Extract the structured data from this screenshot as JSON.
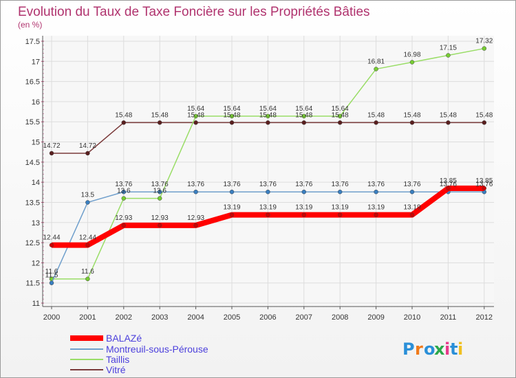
{
  "chart_data": {
    "type": "line",
    "title": "Evolution du Taux de Taxe Foncière sur les Propriétés Bâties",
    "ylabel": "(en %)",
    "xlabel": "",
    "categories": [
      "2000",
      "2001",
      "2002",
      "2003",
      "2004",
      "2005",
      "2006",
      "2007",
      "2008",
      "2009",
      "2010",
      "2011",
      "2012"
    ],
    "ylim": [
      11,
      17.5
    ],
    "yticks": [
      "11",
      "11.5",
      "12",
      "12.5",
      "13",
      "13.5",
      "14",
      "14.5",
      "15",
      "15.5",
      "16",
      "16.5",
      "17",
      "17.5"
    ],
    "series": [
      {
        "name": "BALAZé",
        "color": "#ff0000",
        "marker": "#cc0000",
        "values": [
          12.44,
          12.44,
          12.93,
          12.93,
          12.93,
          13.19,
          13.19,
          13.19,
          13.19,
          13.19,
          13.19,
          13.85,
          13.85
        ],
        "labels": [
          "12.44",
          "12.44",
          "12.93",
          "12.93",
          "12.93",
          "13.19",
          "13.19",
          "13.19",
          "13.19",
          "13.19",
          "13.19",
          "13.85",
          "13.85"
        ]
      },
      {
        "name": "Montreuil-sous-Pérouse",
        "color": "#6f9fcc",
        "marker": "#3a7fc0",
        "values": [
          11.5,
          13.5,
          13.76,
          13.76,
          13.76,
          13.76,
          13.76,
          13.76,
          13.76,
          13.76,
          13.76,
          13.76,
          13.76
        ],
        "labels": [
          "11.5",
          "13.5",
          "13.76",
          "13.76",
          "13.76",
          "13.76",
          "13.76",
          "13.76",
          "13.76",
          "13.76",
          "13.76",
          "13.76",
          "13.76"
        ]
      },
      {
        "name": "Taillis",
        "color": "#99dd66",
        "marker": "#77cc33",
        "values": [
          11.6,
          11.6,
          13.6,
          13.6,
          15.64,
          15.64,
          15.64,
          15.64,
          15.64,
          16.81,
          16.98,
          17.15,
          17.32
        ],
        "labels": [
          "11.6",
          "11.6",
          "13.6",
          "13.6",
          "15.64",
          "15.64",
          "15.64",
          "15.64",
          "15.64",
          "16.81",
          "16.98",
          "17.15",
          "17.32"
        ]
      },
      {
        "name": "Vitré",
        "color": "#7a3a3a",
        "marker": "#5a1f1f",
        "values": [
          14.72,
          14.72,
          15.48,
          15.48,
          15.48,
          15.48,
          15.48,
          15.48,
          15.48,
          15.48,
          15.48,
          15.48,
          15.48
        ],
        "labels": [
          "14.72",
          "14.72",
          "15.48",
          "15.48",
          "15.48",
          "15.48",
          "15.48",
          "15.48",
          "15.48",
          "15.48",
          "15.48",
          "15.48",
          "15.48"
        ]
      }
    ],
    "legend_position": "bottom-left"
  },
  "logo": {
    "text": "Proxiti",
    "letter_colors": [
      "#2a8fd8",
      "#f07a1a",
      "#2a8fd8",
      "#2aa84a",
      "#e83a8a",
      "#2a8fd8",
      "#f0c020"
    ]
  }
}
